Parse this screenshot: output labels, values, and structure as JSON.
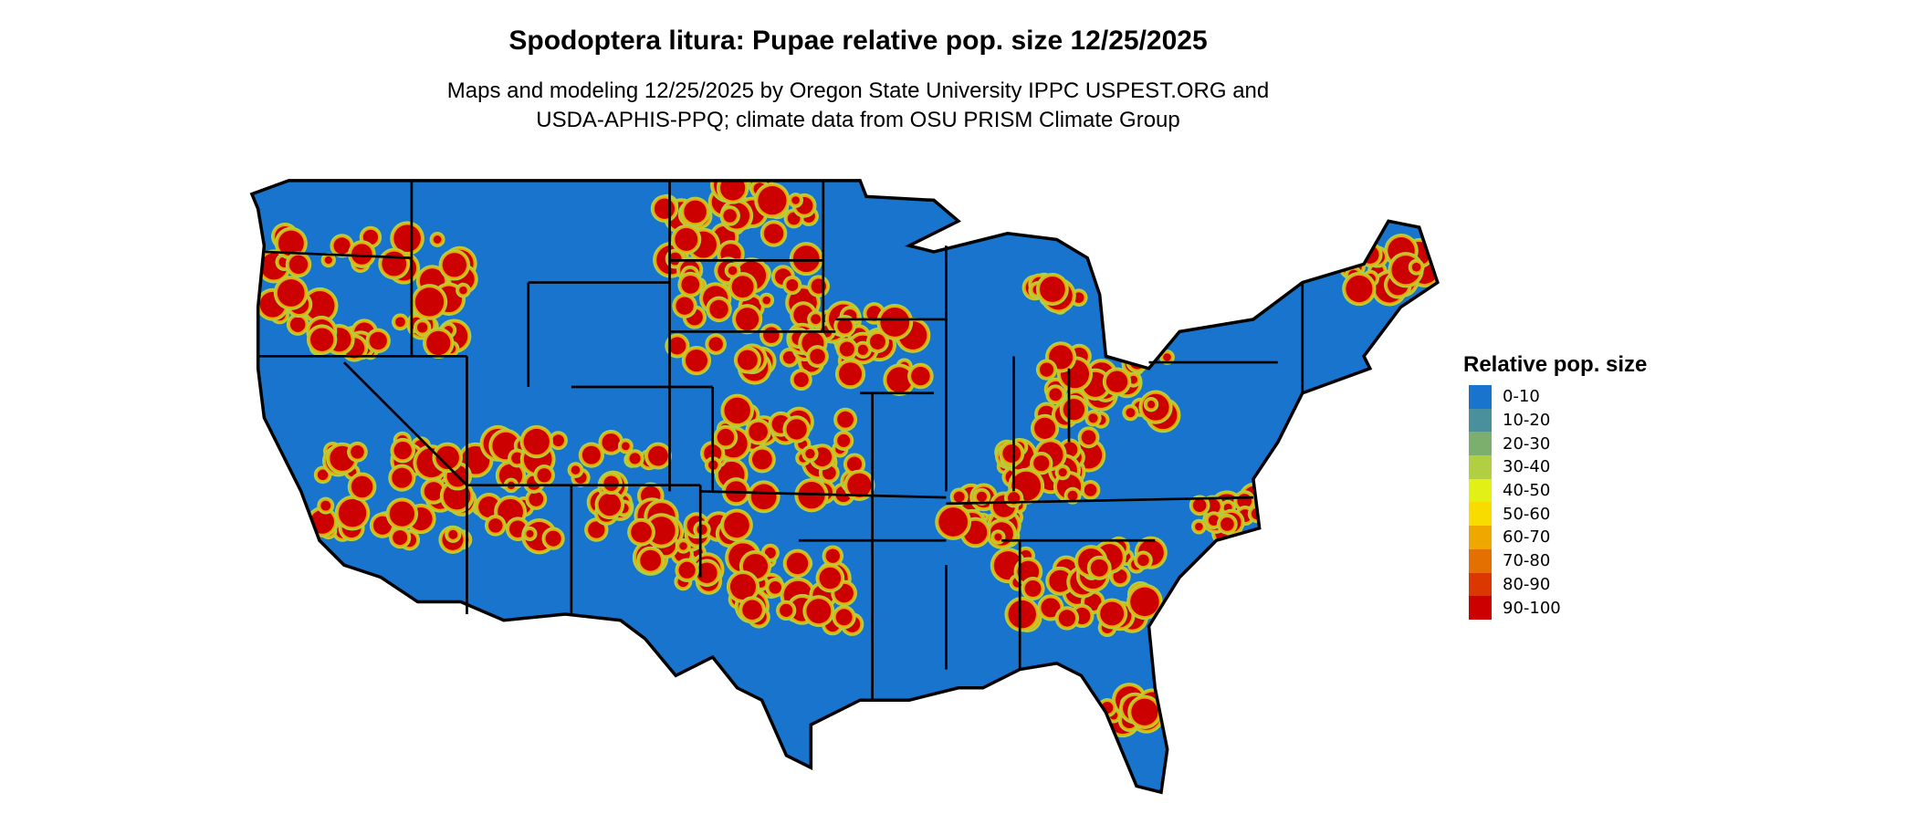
{
  "title": "Spodoptera litura: Pupae relative pop. size 12/25/2025",
  "subtitle_line1": "Maps and modeling 12/25/2025 by Oregon State University IPPC USPEST.ORG and",
  "subtitle_line2": "USDA-APHIS-PPQ; climate data from OSU PRISM Climate Group",
  "legend": {
    "title": "Relative pop. size",
    "items": [
      {
        "label": "0-10",
        "color": "#1874CD"
      },
      {
        "label": "10-20",
        "color": "#4A8F9C"
      },
      {
        "label": "20-30",
        "color": "#7CAE6E"
      },
      {
        "label": "30-40",
        "color": "#B0D042"
      },
      {
        "label": "40-50",
        "color": "#E2F016"
      },
      {
        "label": "50-60",
        "color": "#F8DC00"
      },
      {
        "label": "60-70",
        "color": "#EEA800"
      },
      {
        "label": "70-80",
        "color": "#E37000"
      },
      {
        "label": "80-90",
        "color": "#DA3800"
      },
      {
        "label": "90-100",
        "color": "#CD0000"
      }
    ]
  }
}
